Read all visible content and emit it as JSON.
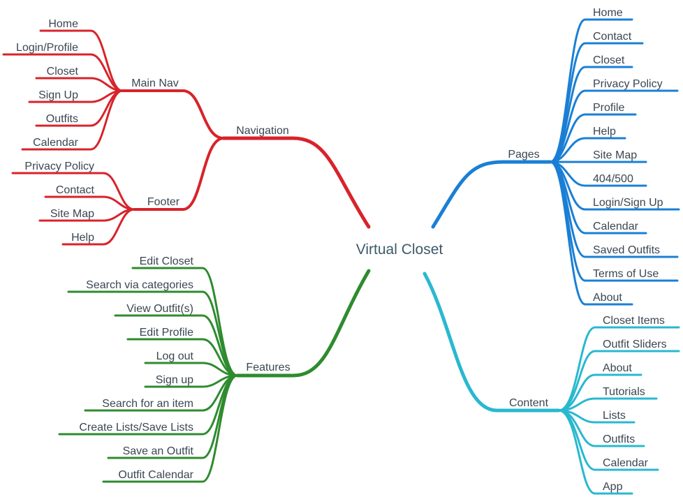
{
  "root": {
    "label": "Virtual Closet"
  },
  "colors": {
    "navigation": "#d8232a",
    "features": "#2e8b2e",
    "pages": "#1a7fd4",
    "content": "#29b8d0"
  },
  "navigation": {
    "label": "Navigation",
    "main_nav": {
      "label": "Main Nav",
      "items": [
        "Home",
        "Login/Profile",
        "Closet",
        "Sign Up",
        "Outfits",
        "Calendar"
      ]
    },
    "footer": {
      "label": "Footer",
      "items": [
        "Privacy Policy",
        "Contact",
        "Site Map",
        "Help"
      ]
    }
  },
  "features": {
    "label": "Features",
    "items": [
      "Edit Closet",
      "Search via categories",
      "View Outfit(s)",
      "Edit Profile",
      "Log out",
      "Sign up",
      "Search for an item",
      "Create Lists/Save Lists",
      "Save an Outfit",
      "Outfit Calendar"
    ]
  },
  "pages": {
    "label": "Pages",
    "items": [
      "Home",
      "Contact",
      "Closet",
      "Privacy Policy",
      "Profile",
      "Help",
      "Site Map",
      "404/500",
      "Login/Sign Up",
      "Calendar",
      "Saved Outfits",
      "Terms of Use",
      "About"
    ]
  },
  "content": {
    "label": "Content",
    "items": [
      "Closet Items",
      "Outfit Sliders",
      "About",
      "Tutorials",
      "Lists",
      "Outfits",
      "Calendar",
      "App"
    ]
  }
}
